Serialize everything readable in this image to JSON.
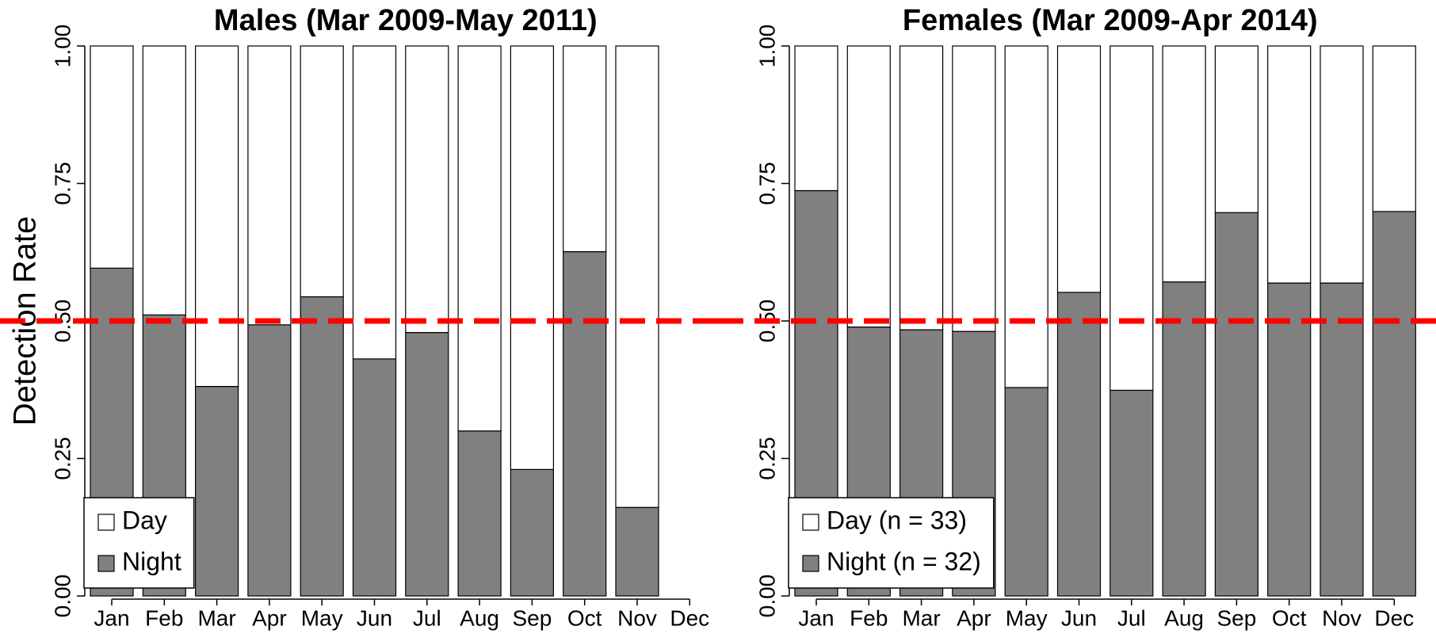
{
  "chart_data": [
    {
      "type": "bar",
      "stacked": true,
      "title": "Males (Mar 2009-May 2011)",
      "ylabel": "Detection Rate",
      "categories": [
        "Jan",
        "Feb",
        "Mar",
        "Apr",
        "May",
        "Jun",
        "Jul",
        "Aug",
        "Sep",
        "Oct",
        "Nov",
        "Dec"
      ],
      "series": [
        {
          "name": "Night",
          "color": "#808080",
          "values": [
            0.596,
            0.511,
            0.381,
            0.493,
            0.544,
            0.431,
            0.479,
            0.3,
            0.23,
            0.626,
            0.161,
            null
          ]
        },
        {
          "name": "Day",
          "color": "#ffffff",
          "values": [
            0.404,
            0.489,
            0.619,
            0.507,
            0.456,
            0.569,
            0.521,
            0.7,
            0.77,
            0.374,
            0.839,
            null
          ]
        }
      ],
      "ylim": [
        0,
        1
      ],
      "yticks": [
        {
          "value": 0,
          "label": "0.00"
        },
        {
          "value": 0.25,
          "label": "0.25"
        },
        {
          "value": 0.5,
          "label": "0.50"
        },
        {
          "value": 0.75,
          "label": "0.75"
        },
        {
          "value": 1,
          "label": "1.00"
        }
      ],
      "legend": "lower left",
      "hline": {
        "value": 0.5,
        "color": "#ff0000",
        "dashed": true
      }
    },
    {
      "type": "bar",
      "stacked": true,
      "title": "Females (Mar 2009-Apr 2014)",
      "categories": [
        "Jan",
        "Feb",
        "Mar",
        "Apr",
        "May",
        "Jun",
        "Jul",
        "Aug",
        "Sep",
        "Oct",
        "Nov",
        "Dec"
      ],
      "series": [
        {
          "name": "Night (n = 32)",
          "color": "#808080",
          "values": [
            0.737,
            0.489,
            0.484,
            0.481,
            0.379,
            0.552,
            0.374,
            0.571,
            0.697,
            0.569,
            0.569,
            0.699
          ]
        },
        {
          "name": "Day (n = 33)",
          "color": "#ffffff",
          "values": [
            0.263,
            0.511,
            0.516,
            0.519,
            0.621,
            0.448,
            0.626,
            0.429,
            0.303,
            0.431,
            0.431,
            0.301
          ]
        }
      ],
      "ylim": [
        0,
        1
      ],
      "yticks": [
        {
          "value": 0,
          "label": "0.00"
        },
        {
          "value": 0.25,
          "label": "0.25"
        },
        {
          "value": 0.5,
          "label": "0.50"
        },
        {
          "value": 0.75,
          "label": "0.75"
        },
        {
          "value": 1,
          "label": "1.00"
        }
      ],
      "legend": "lower left",
      "hline": {
        "value": 0.5,
        "color": "#ff0000",
        "dashed": true
      }
    }
  ]
}
